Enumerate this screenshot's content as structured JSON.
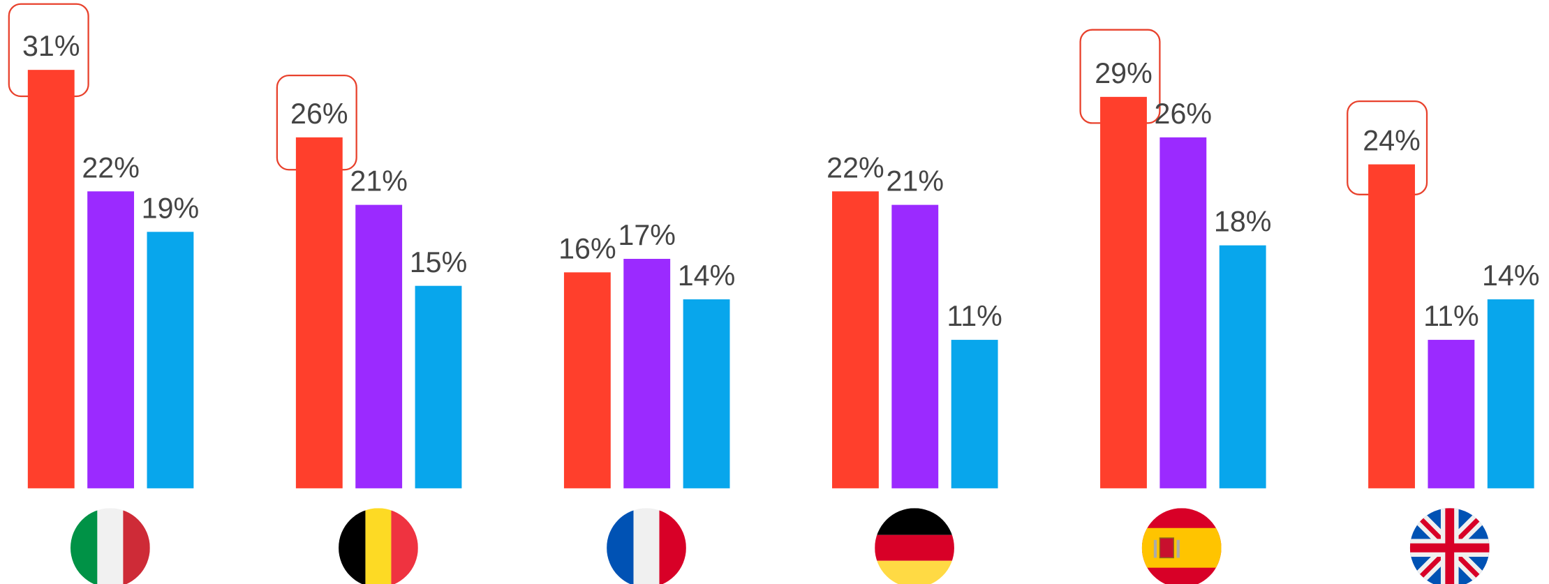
{
  "chart_data": {
    "type": "bar",
    "categories": [
      null,
      null,
      null,
      null,
      null,
      null
    ],
    "series": [
      {
        "color": "#ff3f2c",
        "values": [
          31,
          26,
          16,
          22,
          29,
          24
        ],
        "value_labels": [
          "31%",
          "26%",
          "16%",
          "22%",
          "29%",
          "24%"
        ]
      },
      {
        "color": "#9b2aff",
        "values": [
          22,
          21,
          17,
          21,
          26,
          11
        ],
        "value_labels": [
          "22%",
          "21%",
          "17%",
          "21%",
          "26%",
          "11%"
        ]
      },
      {
        "color": "#08a6ec",
        "values": [
          19,
          15,
          14,
          11,
          18,
          14
        ],
        "value_labels": [
          "19%",
          "15%",
          "14%",
          "11%",
          "18%",
          "14%"
        ]
      }
    ]
  }
}
